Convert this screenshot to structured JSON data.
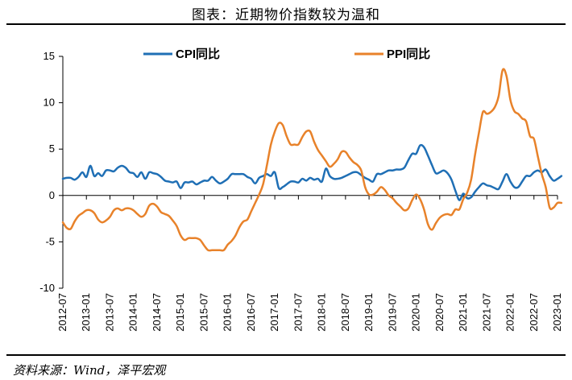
{
  "header": {
    "title": "图表：近期物价指数较为温和"
  },
  "footer": {
    "source": "资料来源：Wind，泽平宏观"
  },
  "chart_data": {
    "type": "line",
    "ylim": [
      -10,
      15
    ],
    "yticks": [
      15,
      10,
      5,
      0,
      -5,
      -10
    ],
    "x_start": "2012-07",
    "x_end": "2023-01",
    "xticks": [
      "2012-07",
      "2013-01",
      "2013-07",
      "2014-01",
      "2014-07",
      "2015-01",
      "2015-07",
      "2016-01",
      "2016-07",
      "2017-01",
      "2017-07",
      "2018-01",
      "2018-07",
      "2019-01",
      "2019-07",
      "2020-01",
      "2020-07",
      "2021-01",
      "2021-07",
      "2022-01",
      "2022-07",
      "2023-01"
    ],
    "legend_position": "top",
    "series": [
      {
        "name": "CPI同比",
        "color": "#1f6fb5",
        "values": [
          1.8,
          1.9,
          1.9,
          1.7,
          2.0,
          2.5,
          2.0,
          3.2,
          2.1,
          2.4,
          2.1,
          2.7,
          2.7,
          2.6,
          3.0,
          3.2,
          3.0,
          2.5,
          2.4,
          2.0,
          2.5,
          1.8,
          2.5,
          2.4,
          2.3,
          2.0,
          1.6,
          1.5,
          1.4,
          1.5,
          0.8,
          1.4,
          1.4,
          1.5,
          1.2,
          1.4,
          1.6,
          1.6,
          2.0,
          1.6,
          1.3,
          1.5,
          1.8,
          2.3,
          2.3,
          2.3,
          2.3,
          2.0,
          1.8,
          1.3,
          1.9,
          2.1,
          2.3,
          2.1,
          2.5,
          0.8,
          0.9,
          1.2,
          1.5,
          1.5,
          1.4,
          1.8,
          1.6,
          1.9,
          1.7,
          1.8,
          1.5,
          2.9,
          2.1,
          1.8,
          1.8,
          1.9,
          2.1,
          2.3,
          2.5,
          2.5,
          2.2,
          1.9,
          1.7,
          1.5,
          2.3,
          2.3,
          2.5,
          2.7,
          2.7,
          2.8,
          2.8,
          3.0,
          3.8,
          4.5,
          4.5,
          5.4,
          5.2,
          4.3,
          3.3,
          2.4,
          2.5,
          2.7,
          2.4,
          1.7,
          0.5,
          -0.5,
          0.2,
          -0.3,
          -0.2,
          0.4,
          0.9,
          1.3,
          1.1,
          1.0,
          0.8,
          0.7,
          1.5,
          2.3,
          1.5,
          0.9,
          0.9,
          1.5,
          2.1,
          2.1,
          2.5,
          2.7,
          2.5,
          2.8,
          2.1,
          1.6,
          1.8,
          2.1
        ],
        "x_offset_months": 0
      },
      {
        "name": "PPI同比",
        "color": "#e8822a",
        "values": [
          -2.9,
          -3.5,
          -3.6,
          -2.8,
          -2.2,
          -1.9,
          -1.6,
          -1.6,
          -1.9,
          -2.6,
          -2.9,
          -2.7,
          -2.3,
          -1.6,
          -1.4,
          -1.6,
          -1.4,
          -1.4,
          -1.6,
          -2.0,
          -2.3,
          -2.0,
          -1.1,
          -0.9,
          -1.2,
          -1.8,
          -2.0,
          -2.2,
          -2.7,
          -3.3,
          -4.3,
          -4.8,
          -4.6,
          -4.6,
          -4.6,
          -4.8,
          -5.4,
          -5.9,
          -5.9,
          -5.9,
          -5.9,
          -5.9,
          -5.3,
          -4.9,
          -4.3,
          -3.4,
          -2.8,
          -2.6,
          -1.7,
          -0.8,
          0.1,
          1.2,
          3.3,
          5.5,
          6.9,
          7.8,
          7.6,
          6.4,
          5.5,
          5.5,
          5.5,
          6.3,
          6.9,
          6.9,
          5.8,
          4.9,
          4.3,
          3.7,
          3.1,
          3.4,
          3.9,
          4.7,
          4.7,
          4.1,
          3.6,
          3.3,
          2.7,
          0.9,
          0.1,
          0.1,
          0.4,
          0.9,
          0.6,
          0.0,
          -0.3,
          -0.8,
          -1.2,
          -1.6,
          -1.4,
          -0.5,
          0.1,
          -0.4,
          -1.5,
          -3.1,
          -3.7,
          -3.0,
          -2.4,
          -2.1,
          -2.0,
          -2.1,
          -1.5,
          -1.5,
          -0.4,
          0.3,
          1.7,
          4.4,
          6.8,
          9.0,
          8.8,
          9.0,
          9.5,
          10.7,
          13.5,
          12.9,
          10.3,
          9.1,
          8.8,
          8.3,
          8.0,
          6.4,
          6.1,
          4.2,
          2.3,
          0.9,
          -1.3,
          -1.3,
          -0.8,
          -0.8
        ]
      }
    ]
  }
}
